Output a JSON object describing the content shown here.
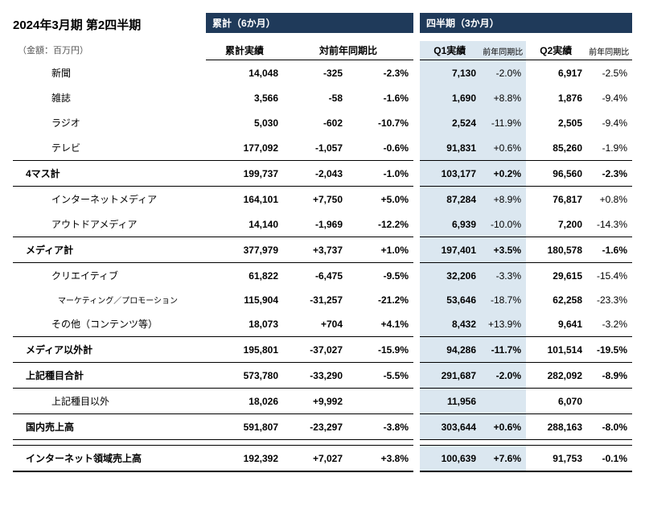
{
  "title": "2024年3月期 第2四半期",
  "unit": "（金額：百万円）",
  "bands": {
    "cumulative": "累計（6か月）",
    "quarterly": "四半期（3か月）"
  },
  "colheads": {
    "cum": "累計実績",
    "yoy": "対前年同期比",
    "q1v": "Q1実績",
    "q1p": "前年同期比",
    "q2v": "Q2実績",
    "q2p": "前年同期比"
  },
  "rows": [
    {
      "label": "新聞",
      "indent": 1,
      "cum": "14,048",
      "diff": "-325",
      "pct": "-2.3%",
      "q1v": "7,130",
      "q1p": "-2.0%",
      "q2v": "6,917",
      "q2p": "-2.5%"
    },
    {
      "label": "雑誌",
      "indent": 1,
      "cum": "3,566",
      "diff": "-58",
      "pct": "-1.6%",
      "q1v": "1,690",
      "q1p": "+8.8%",
      "q2v": "1,876",
      "q2p": "-9.4%"
    },
    {
      "label": "ラジオ",
      "indent": 1,
      "cum": "5,030",
      "diff": "-602",
      "pct": "-10.7%",
      "q1v": "2,524",
      "q1p": "-11.9%",
      "q2v": "2,505",
      "q2p": "-9.4%"
    },
    {
      "label": "テレビ",
      "indent": 1,
      "cum": "177,092",
      "diff": "-1,057",
      "pct": "-0.6%",
      "q1v": "91,831",
      "q1p": "+0.6%",
      "q2v": "85,260",
      "q2p": "-1.9%"
    },
    {
      "label": "4マス計",
      "sum": true,
      "cum": "199,737",
      "diff": "-2,043",
      "pct": "-1.0%",
      "q1v": "103,177",
      "q1p": "+0.2%",
      "q2v": "96,560",
      "q2p": "-2.3%"
    },
    {
      "label": "インターネットメディア",
      "indent": 1,
      "cum": "164,101",
      "diff": "+7,750",
      "pct": "+5.0%",
      "q1v": "87,284",
      "q1p": "+8.9%",
      "q2v": "76,817",
      "q2p": "+0.8%"
    },
    {
      "label": "アウトドアメディア",
      "indent": 1,
      "cum": "14,140",
      "diff": "-1,969",
      "pct": "-12.2%",
      "q1v": "6,939",
      "q1p": "-10.0%",
      "q2v": "7,200",
      "q2p": "-14.3%"
    },
    {
      "label": "メディア計",
      "sum": true,
      "cum": "377,979",
      "diff": "+3,737",
      "pct": "+1.0%",
      "q1v": "197,401",
      "q1p": "+3.5%",
      "q2v": "180,578",
      "q2p": "-1.6%"
    },
    {
      "label": "クリエイティブ",
      "indent": 1,
      "cum": "61,822",
      "diff": "-6,475",
      "pct": "-9.5%",
      "q1v": "32,206",
      "q1p": "-3.3%",
      "q2v": "29,615",
      "q2p": "-15.4%"
    },
    {
      "label": "マーケティング／プロモーション",
      "indent": 2,
      "cum": "115,904",
      "diff": "-31,257",
      "pct": "-21.2%",
      "q1v": "53,646",
      "q1p": "-18.7%",
      "q2v": "62,258",
      "q2p": "-23.3%"
    },
    {
      "label": "その他（コンテンツ等）",
      "indent": 1,
      "cum": "18,073",
      "diff": "+704",
      "pct": "+4.1%",
      "q1v": "8,432",
      "q1p": "+13.9%",
      "q2v": "9,641",
      "q2p": "-3.2%"
    },
    {
      "label": "メディア以外計",
      "sum": true,
      "cum": "195,801",
      "diff": "-37,027",
      "pct": "-15.9%",
      "q1v": "94,286",
      "q1p": "-11.7%",
      "q2v": "101,514",
      "q2p": "-19.5%"
    },
    {
      "label": "上記種目合計",
      "sum": true,
      "cum": "573,780",
      "diff": "-33,290",
      "pct": "-5.5%",
      "q1v": "291,687",
      "q1p": "-2.0%",
      "q2v": "282,092",
      "q2p": "-8.9%"
    },
    {
      "label": "上記種目以外",
      "indent": 1,
      "cum": "18,026",
      "diff": "+9,992",
      "pct": "",
      "q1v": "11,956",
      "q1p": "",
      "q2v": "6,070",
      "q2p": ""
    },
    {
      "label": "国内売上高",
      "sum": true,
      "cum": "591,807",
      "diff": "-23,297",
      "pct": "-3.8%",
      "q1v": "303,644",
      "q1p": "+0.6%",
      "q2v": "288,163",
      "q2p": "-8.0%"
    },
    {
      "label": "インターネット領域売上高",
      "sum": true,
      "last": true,
      "spacer": true,
      "cum": "192,392",
      "diff": "+7,027",
      "pct": "+3.8%",
      "q1v": "100,639",
      "q1p": "+7.6%",
      "q2v": "91,753",
      "q2p": "-0.1%"
    }
  ]
}
